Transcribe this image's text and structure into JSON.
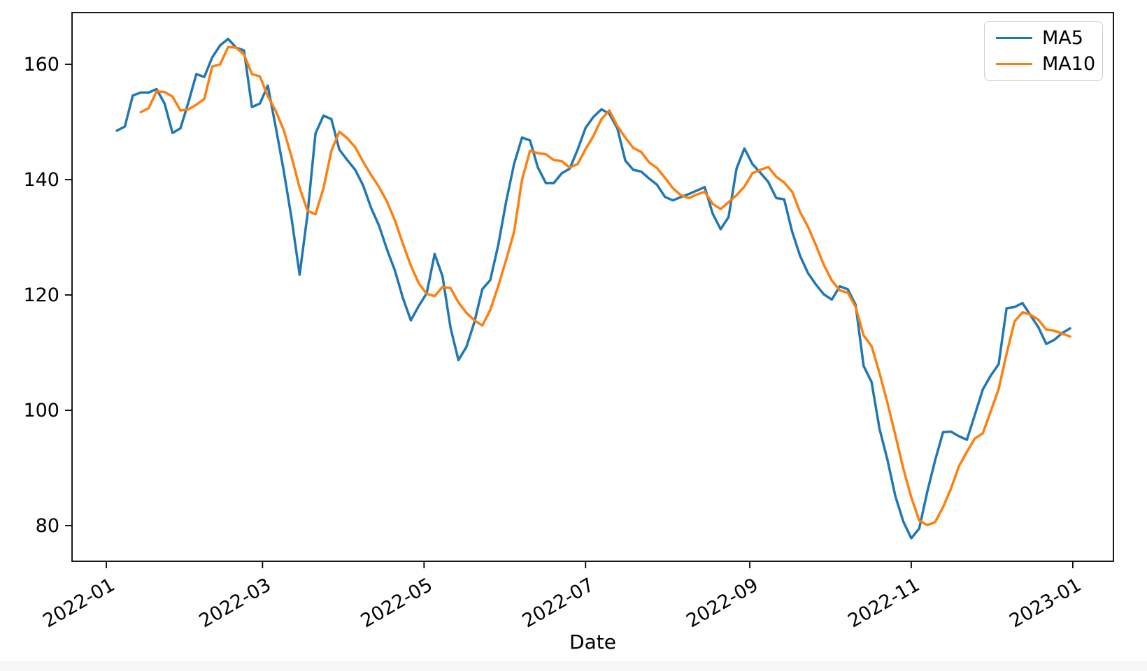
{
  "page": {
    "background": "#ffffff",
    "bottom_strip_color": "#f6f6f8"
  },
  "chart_data": {
    "type": "line",
    "title": "",
    "xlabel": "Date",
    "ylabel": "",
    "grid": false,
    "legend_position": "upper right",
    "axis_color": "#000000",
    "y_ticks": [
      80,
      100,
      120,
      140,
      160
    ],
    "ylim": [
      73.8,
      169.0
    ],
    "x_tick_labels": [
      "2022-01",
      "2022-03",
      "2022-05",
      "2022-07",
      "2022-09",
      "2022-11",
      "2023-01"
    ],
    "x_tick_dates": [
      "2022-01-01",
      "2022-03-01",
      "2022-05-01",
      "2022-07-01",
      "2022-09-01",
      "2022-11-01",
      "2023-01-01"
    ],
    "xlim": [
      "2021-12-19",
      "2023-01-16"
    ],
    "dates": [
      "2022-01-05",
      "2022-01-08",
      "2022-01-11",
      "2022-01-14",
      "2022-01-17",
      "2022-01-20",
      "2022-01-23",
      "2022-01-26",
      "2022-01-29",
      "2022-02-01",
      "2022-02-04",
      "2022-02-07",
      "2022-02-10",
      "2022-02-13",
      "2022-02-16",
      "2022-02-19",
      "2022-02-22",
      "2022-02-25",
      "2022-02-28",
      "2022-03-03",
      "2022-03-06",
      "2022-03-09",
      "2022-03-12",
      "2022-03-15",
      "2022-03-18",
      "2022-03-21",
      "2022-03-24",
      "2022-03-27",
      "2022-03-30",
      "2022-04-02",
      "2022-04-05",
      "2022-04-08",
      "2022-04-11",
      "2022-04-14",
      "2022-04-17",
      "2022-04-20",
      "2022-04-23",
      "2022-04-26",
      "2022-04-29",
      "2022-05-02",
      "2022-05-05",
      "2022-05-08",
      "2022-05-11",
      "2022-05-14",
      "2022-05-17",
      "2022-05-20",
      "2022-05-23",
      "2022-05-26",
      "2022-05-29",
      "2022-06-01",
      "2022-06-04",
      "2022-06-07",
      "2022-06-10",
      "2022-06-13",
      "2022-06-16",
      "2022-06-19",
      "2022-06-22",
      "2022-06-25",
      "2022-06-28",
      "2022-07-01",
      "2022-07-04",
      "2022-07-07",
      "2022-07-10",
      "2022-07-13",
      "2022-07-16",
      "2022-07-19",
      "2022-07-22",
      "2022-07-25",
      "2022-07-28",
      "2022-07-31",
      "2022-08-03",
      "2022-08-06",
      "2022-08-09",
      "2022-08-12",
      "2022-08-15",
      "2022-08-18",
      "2022-08-21",
      "2022-08-24",
      "2022-08-27",
      "2022-08-30",
      "2022-09-02",
      "2022-09-05",
      "2022-09-08",
      "2022-09-11",
      "2022-09-14",
      "2022-09-17",
      "2022-09-20",
      "2022-09-23",
      "2022-09-26",
      "2022-09-29",
      "2022-10-02",
      "2022-10-05",
      "2022-10-08",
      "2022-10-11",
      "2022-10-14",
      "2022-10-17",
      "2022-10-20",
      "2022-10-23",
      "2022-10-26",
      "2022-10-29",
      "2022-11-01",
      "2022-11-04",
      "2022-11-07",
      "2022-11-10",
      "2022-11-13",
      "2022-11-16",
      "2022-11-19",
      "2022-11-22",
      "2022-11-25",
      "2022-11-28",
      "2022-12-01",
      "2022-12-04",
      "2022-12-07",
      "2022-12-10",
      "2022-12-13",
      "2022-12-16",
      "2022-12-19",
      "2022-12-22",
      "2022-12-25",
      "2022-12-28",
      "2022-12-31"
    ],
    "series": [
      {
        "name": "MA5",
        "color": "#1f77b4",
        "values": [
          148.5,
          149.2,
          154.6,
          155.1,
          155.1,
          155.7,
          153.2,
          148.1,
          148.9,
          153.4,
          158.3,
          157.8,
          161.2,
          163.3,
          164.4,
          162.9,
          162.4,
          152.6,
          153.2,
          156.3,
          149.1,
          141.5,
          133.2,
          123.5,
          134.0,
          148.0,
          151.1,
          150.5,
          145.2,
          143.4,
          141.7,
          139.0,
          135.1,
          132.0,
          127.9,
          124.2,
          119.5,
          115.6,
          118.1,
          120.3,
          127.1,
          123.2,
          114.3,
          108.7,
          111.0,
          115.3,
          121.0,
          122.6,
          128.6,
          136.2,
          142.7,
          147.3,
          146.8,
          142.1,
          139.4,
          139.4,
          141.1,
          141.9,
          145.2,
          149.0,
          150.9,
          152.2,
          151.4,
          148.9,
          143.3,
          141.7,
          141.4,
          140.2,
          139.1,
          137.0,
          136.4,
          137.0,
          137.5,
          138.1,
          138.7,
          134.1,
          131.4,
          133.5,
          141.9,
          145.4,
          142.7,
          141.2,
          139.6,
          136.8,
          136.6,
          131.0,
          126.8,
          123.8,
          121.8,
          120.1,
          119.2,
          121.5,
          121.0,
          118.3,
          107.7,
          104.9,
          96.8,
          91.4,
          85.1,
          80.7,
          77.8,
          79.5,
          85.8,
          91.3,
          96.2,
          96.3,
          95.5,
          94.9,
          99.2,
          103.6,
          106.0,
          108.0,
          117.7,
          117.9,
          118.6,
          116.5,
          114.4,
          111.5,
          112.2,
          113.4,
          114.2
        ]
      },
      {
        "name": "MA10",
        "color": "#ff7f0e",
        "values": [
          null,
          null,
          null,
          151.7,
          152.4,
          155.3,
          155.2,
          154.4,
          152.0,
          152.2,
          153.0,
          154.0,
          159.6,
          160.0,
          163.0,
          162.9,
          161.7,
          158.3,
          157.9,
          154.5,
          151.9,
          148.6,
          143.9,
          138.6,
          134.6,
          134.0,
          138.5,
          145.0,
          148.3,
          147.2,
          145.6,
          143.1,
          140.8,
          138.7,
          136.2,
          132.9,
          128.9,
          125.1,
          122.0,
          120.2,
          119.8,
          121.4,
          121.2,
          118.7,
          116.9,
          115.6,
          114.7,
          117.4,
          121.5,
          126.1,
          130.9,
          140.0,
          145.0,
          144.6,
          144.4,
          143.4,
          143.2,
          142.1,
          142.7,
          145.3,
          147.6,
          150.5,
          152.0,
          149.3,
          147.3,
          145.5,
          144.8,
          143.0,
          142.0,
          140.3,
          138.5,
          137.3,
          136.8,
          137.4,
          137.9,
          135.8,
          134.9,
          136.1,
          137.3,
          138.8,
          141.1,
          141.7,
          142.2,
          140.5,
          139.5,
          137.9,
          134.4,
          131.8,
          128.6,
          125.2,
          122.5,
          120.8,
          120.4,
          117.9,
          113.0,
          111.1,
          106.5,
          101.3,
          95.7,
          89.9,
          84.9,
          80.9,
          80.1,
          80.6,
          83.2,
          86.4,
          90.3,
          92.8,
          95.1,
          96.0,
          99.8,
          103.7,
          109.8,
          115.4,
          117.0,
          116.6,
          115.7,
          114.0,
          113.8,
          113.3,
          112.8
        ]
      }
    ]
  }
}
